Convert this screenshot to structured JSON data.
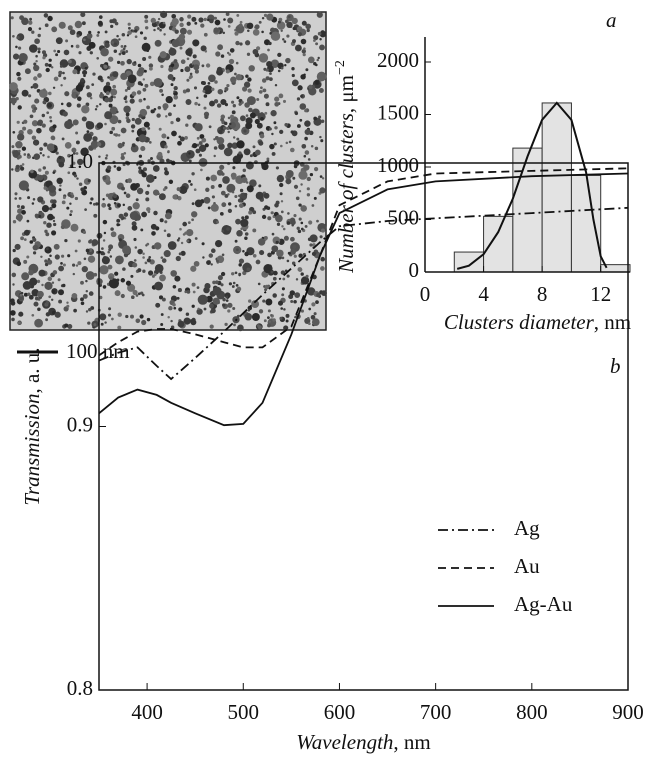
{
  "micrograph": {
    "scale_bar": "100 nm"
  },
  "chart_data": [
    {
      "type": "histogram",
      "panel": "a",
      "bins": [
        2,
        4,
        6,
        8,
        10,
        12,
        14
      ],
      "values": [
        190,
        530,
        1180,
        1610,
        920,
        70
      ],
      "color": "#e3e3e3",
      "fit": {
        "x": [
          2.2,
          3,
          4,
          5,
          6,
          7,
          8,
          9,
          10,
          11,
          11.5,
          12,
          12.4
        ],
        "values": [
          30,
          60,
          170,
          380,
          700,
          1100,
          1450,
          1610,
          1450,
          950,
          500,
          150,
          40
        ]
      },
      "xlabel": [
        "Clusters diameter",
        ", nm"
      ],
      "ylabel": [
        "Number of clusters",
        ", μm",
        "−2"
      ],
      "xlim": [
        0,
        14
      ],
      "xticks": [
        0,
        4,
        8,
        12
      ],
      "ylim": [
        0,
        2200
      ],
      "yticks": [
        0,
        500,
        1000,
        1500,
        2000
      ]
    },
    {
      "type": "line",
      "panel": "b",
      "x": [
        350,
        370,
        390,
        410,
        425,
        450,
        480,
        500,
        520,
        550,
        580,
        600,
        650,
        700,
        800,
        900
      ],
      "series": [
        {
          "name": "Ag",
          "color": "#111111",
          "linestyle": "dashdot",
          "values": [
            0.925,
            0.928,
            0.93,
            0.923,
            0.918,
            0.926,
            0.936,
            0.943,
            0.95,
            0.96,
            0.97,
            0.976,
            0.978,
            0.979,
            0.981,
            0.983
          ]
        },
        {
          "name": "Au",
          "color": "#111111",
          "linestyle": "dashed",
          "values": [
            0.927,
            0.932,
            0.936,
            0.937,
            0.937,
            0.935,
            0.932,
            0.93,
            0.93,
            0.938,
            0.965,
            0.984,
            0.993,
            0.996,
            0.997,
            0.998
          ]
        },
        {
          "name": "Ag-Au",
          "color": "#111111",
          "linestyle": "solid",
          "values": [
            0.905,
            0.911,
            0.914,
            0.912,
            0.909,
            0.905,
            0.9005,
            0.901,
            0.909,
            0.935,
            0.965,
            0.981,
            0.99,
            0.993,
            0.995,
            0.996
          ]
        }
      ],
      "xlabel": [
        "Wavelength",
        ", nm"
      ],
      "ylabel": [
        "Transmission",
        ", a. u."
      ],
      "xlim": [
        350,
        900
      ],
      "xticks": [
        400,
        500,
        600,
        700,
        800,
        900
      ],
      "ylim": [
        0.8,
        1
      ],
      "yticks": [
        0.8,
        0.9,
        {
          "value": 1,
          "label": "1.0"
        }
      ],
      "legend": "lower right"
    }
  ]
}
